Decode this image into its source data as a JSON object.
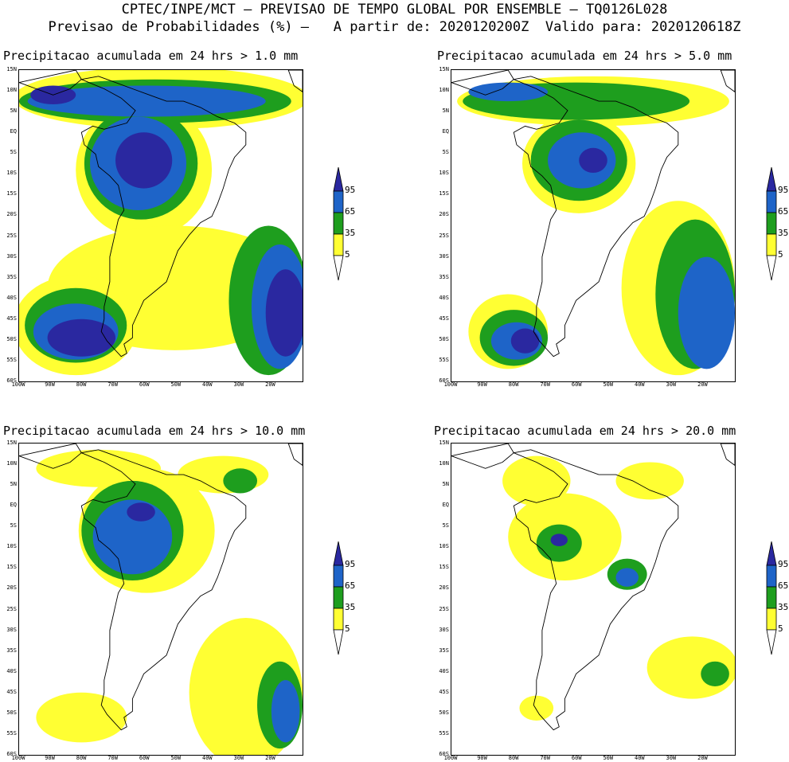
{
  "header": {
    "line1": "CPTEC/INPE/MCT – PREVISAO DE TEMPO GLOBAL POR ENSEMBLE – TQ0126L028",
    "line2": "Previsao de Probabilidades (%) –   A partir de: 2020120200Z  Valido para: 2020120618Z"
  },
  "colors": {
    "band_5": "#ffff33",
    "band_35": "#1e9e1e",
    "band_65": "#1e64c8",
    "band_95": "#2a28a0",
    "coast": "#000000",
    "background": "#ffffff"
  },
  "legend": {
    "levels": [
      "95",
      "65",
      "35",
      "5"
    ]
  },
  "axes": {
    "lat_labels": [
      "15N",
      "10N",
      "5N",
      "EQ",
      "5S",
      "10S",
      "15S",
      "20S",
      "25S",
      "30S",
      "35S",
      "40S",
      "45S",
      "50S",
      "55S",
      "60S"
    ],
    "lon_labels": [
      "100W",
      "90W",
      "80W",
      "70W",
      "60W",
      "50W",
      "40W",
      "30W",
      "20W"
    ]
  },
  "maps": [
    {
      "title": "Precipitacao acumulada em 24 hrs > 1.0 mm"
    },
    {
      "title": "Precipitacao acumulada em 24 hrs > 5.0 mm"
    },
    {
      "title": "Precipitacao acumulada em 24 hrs > 10.0 mm"
    },
    {
      "title": "Precipitacao acumulada em 24 hrs > 20.0 mm"
    }
  ]
}
